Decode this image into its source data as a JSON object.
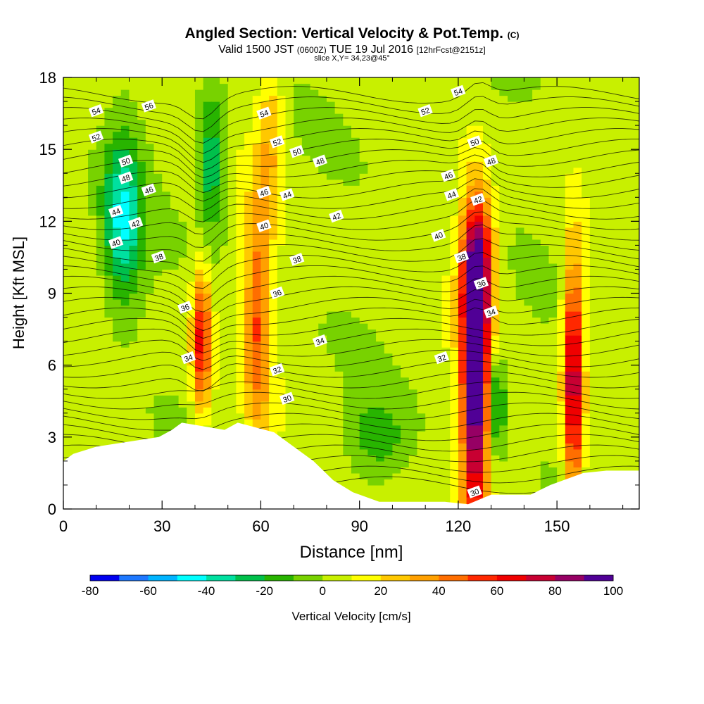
{
  "title": {
    "main": "Angled Section: Vertical Velocity & Pot.Temp.",
    "corner_mark": "(C)",
    "valid_prefix": "Valid 1500 JST",
    "valid_z": "(0600Z)",
    "valid_date": "TUE 19 Jul 2016",
    "forecast": "[12hrFcst@2151z]",
    "slice": "slice X,Y= 34,23@45°"
  },
  "chart_data": {
    "type": "heatmap",
    "xlabel": "Distance [nm]",
    "ylabel": "Height [Kft MSL]",
    "xlim": [
      0,
      175
    ],
    "ylim": [
      0,
      18
    ],
    "x_ticks": [
      0,
      30,
      60,
      90,
      120,
      150
    ],
    "y_ticks": [
      0,
      3,
      6,
      9,
      12,
      15,
      18
    ],
    "colorbar": {
      "label": "Vertical Velocity [cm/s]",
      "tick_labels": [
        -80,
        -60,
        -40,
        -20,
        0,
        20,
        40,
        60,
        80,
        100
      ],
      "levels": [
        -80,
        -70,
        -60,
        -50,
        -40,
        -30,
        -20,
        -10,
        0,
        10,
        20,
        30,
        40,
        50,
        60,
        70,
        80,
        90,
        100
      ],
      "colors": [
        "#0000f0",
        "#1e78ff",
        "#00b4ff",
        "#00ffff",
        "#00e0a0",
        "#00c04b",
        "#28b400",
        "#78d200",
        "#c8f000",
        "#ffff00",
        "#ffc800",
        "#ffa000",
        "#ff6e00",
        "#ff2800",
        "#f00000",
        "#c80032",
        "#960064",
        "#500096"
      ]
    },
    "terrain_kft": [
      [
        0,
        2
      ],
      [
        3,
        2.3
      ],
      [
        10,
        2.6
      ],
      [
        29,
        3.0
      ],
      [
        33,
        3.3
      ],
      [
        36,
        3.6
      ],
      [
        49,
        3.3
      ],
      [
        53,
        3.6
      ],
      [
        64,
        3.2
      ],
      [
        70,
        2.6
      ],
      [
        76,
        2.0
      ],
      [
        82,
        1.2
      ],
      [
        88,
        0.7
      ],
      [
        96,
        0.3
      ],
      [
        116,
        0.3
      ],
      [
        123,
        0.2
      ],
      [
        130,
        0.6
      ],
      [
        142,
        0.6
      ],
      [
        148,
        1.0
      ],
      [
        158,
        1.5
      ],
      [
        165,
        1.6
      ],
      [
        175,
        1.6
      ]
    ],
    "vertical_velocity_features": [
      {
        "x": 18,
        "y": 12.0,
        "w": -45,
        "rx": 6,
        "ry": 3.5
      },
      {
        "x": 45,
        "y": 14.5,
        "w": -35,
        "rx": 4,
        "ry": 3
      },
      {
        "x": 125,
        "y": 5.0,
        "w": 100,
        "rx": 4,
        "ry": 6
      },
      {
        "x": 126,
        "y": 10.0,
        "w": 70,
        "rx": 5,
        "ry": 3
      },
      {
        "x": 155,
        "y": 5.5,
        "w": 80,
        "rx": 3,
        "ry": 5
      },
      {
        "x": 42,
        "y": 7.0,
        "w": 60,
        "rx": 3,
        "ry": 3
      },
      {
        "x": 59,
        "y": 8.0,
        "w": 45,
        "rx": 4,
        "ry": 5
      },
      {
        "x": 63,
        "y": 15.5,
        "w": 25,
        "rx": 4,
        "ry": 3.5
      },
      {
        "x": 132,
        "y": 4.5,
        "w": -40,
        "rx": 2,
        "ry": 2
      },
      {
        "x": 95,
        "y": 3.0,
        "w": -20,
        "rx": 9,
        "ry": 1.5
      }
    ],
    "potential_temperature_labels": [
      {
        "value": 56,
        "x": 26,
        "y": 16.8
      },
      {
        "value": 54,
        "x": 10,
        "y": 16.6
      },
      {
        "value": 52,
        "x": 10,
        "y": 15.5
      },
      {
        "value": 50,
        "x": 19,
        "y": 14.5
      },
      {
        "value": 48,
        "x": 19,
        "y": 13.8
      },
      {
        "value": 46,
        "x": 26,
        "y": 13.3
      },
      {
        "value": 44,
        "x": 16,
        "y": 12.4
      },
      {
        "value": 42,
        "x": 22,
        "y": 11.9
      },
      {
        "value": 40,
        "x": 16,
        "y": 11.1
      },
      {
        "value": 38,
        "x": 29,
        "y": 10.5
      },
      {
        "value": 36,
        "x": 37,
        "y": 8.4
      },
      {
        "value": 34,
        "x": 38,
        "y": 6.3
      },
      {
        "value": 54,
        "x": 61,
        "y": 16.5
      },
      {
        "value": 52,
        "x": 65,
        "y": 15.3
      },
      {
        "value": 50,
        "x": 71,
        "y": 14.9
      },
      {
        "value": 48,
        "x": 78,
        "y": 14.5
      },
      {
        "value": 46,
        "x": 61,
        "y": 13.2
      },
      {
        "value": 44,
        "x": 68,
        "y": 13.1
      },
      {
        "value": 42,
        "x": 83,
        "y": 12.2
      },
      {
        "value": 40,
        "x": 61,
        "y": 11.8
      },
      {
        "value": 38,
        "x": 71,
        "y": 10.4
      },
      {
        "value": 36,
        "x": 65,
        "y": 9.0
      },
      {
        "value": 34,
        "x": 78,
        "y": 7.0
      },
      {
        "value": 32,
        "x": 65,
        "y": 5.8
      },
      {
        "value": 30,
        "x": 68,
        "y": 4.6
      },
      {
        "value": 54,
        "x": 120,
        "y": 17.4
      },
      {
        "value": 52,
        "x": 110,
        "y": 16.6
      },
      {
        "value": 50,
        "x": 125,
        "y": 15.3
      },
      {
        "value": 48,
        "x": 130,
        "y": 14.5
      },
      {
        "value": 46,
        "x": 117,
        "y": 13.9
      },
      {
        "value": 44,
        "x": 118,
        "y": 13.1
      },
      {
        "value": 42,
        "x": 126,
        "y": 12.9
      },
      {
        "value": 40,
        "x": 114,
        "y": 11.4
      },
      {
        "value": 38,
        "x": 121,
        "y": 10.5
      },
      {
        "value": 36,
        "x": 127,
        "y": 9.4
      },
      {
        "value": 34,
        "x": 130,
        "y": 8.2
      },
      {
        "value": 32,
        "x": 115,
        "y": 6.3
      },
      {
        "value": 30,
        "x": 125,
        "y": 0.7
      }
    ]
  }
}
